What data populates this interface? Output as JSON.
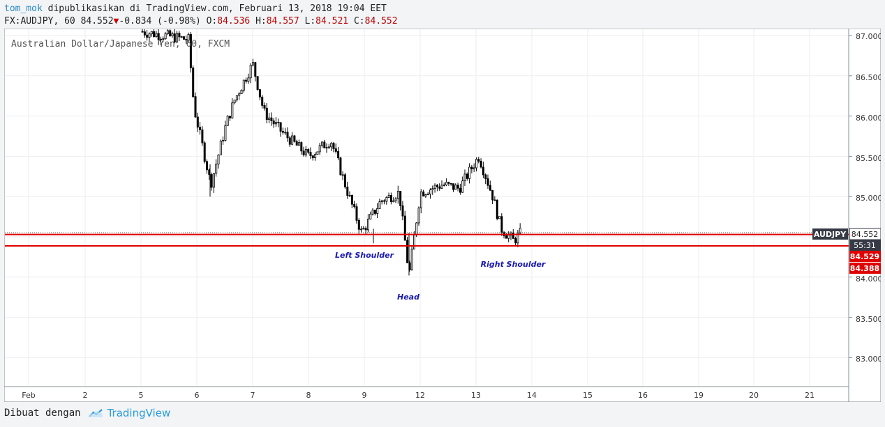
{
  "header": {
    "author": "tom_mok",
    "published_text": "dipublikasikan di TradingView.com, Februari 13, 2018 19:04 EET",
    "symbol": "FX:AUDJPY, 60",
    "last": "84.552",
    "down_arrow": "▼",
    "change": "-0.834 (-0.98%)",
    "o_label": "O:",
    "o_value": "84.536",
    "h_label": "H:",
    "h_value": "84.557",
    "l_label": "L:",
    "l_value": "84.521",
    "c_label": "C:",
    "c_value": "84.552"
  },
  "chart": {
    "watermark": "Australian Dollar/Japanese Yen, 60, FXCM",
    "price_labels": [
      "87.000",
      "86.500",
      "86.000",
      "85.500",
      "85.000",
      "84.000",
      "83.500",
      "83.000"
    ],
    "x_labels": [
      "Feb",
      "2",
      "5",
      "6",
      "7",
      "8",
      "9",
      "12",
      "13",
      "14",
      "15",
      "16",
      "19",
      "20",
      "21"
    ],
    "badges": {
      "symbol": "AUDJPY",
      "price": "84.552",
      "countdown": "55:31",
      "line1": "84.529",
      "line2": "84.388"
    },
    "annotations": {
      "left_shoulder": "Left Shoulder",
      "head": "Head",
      "right_shoulder": "Right Shoulder"
    },
    "colors": {
      "candle": "#000000",
      "support_line": "#e00000",
      "badge_dark": "#363a45",
      "badge_red": "#e00000",
      "annotation": "#1a1ab0"
    }
  },
  "chart_data": {
    "type": "line",
    "title": "Australian Dollar/Japanese Yen, 60, FXCM",
    "x": [
      "Feb 5",
      "Feb 6",
      "Feb 6",
      "Feb 7",
      "Feb 7",
      "Feb 8",
      "Feb 8",
      "Feb 9",
      "Feb 9",
      "Feb 12",
      "Feb 12",
      "Feb 13",
      "Feb 13"
    ],
    "series": [
      {
        "values": [
          87.05,
          86.1,
          85.15,
          86.2,
          86.65,
          85.9,
          85.7,
          85.0,
          84.55,
          84.02,
          85.15,
          85.55,
          84.55
        ]
      }
    ],
    "yticks": [
      83.0,
      83.5,
      84.0,
      84.5,
      85.0,
      85.5,
      86.0,
      86.5,
      87.0
    ],
    "ylim": [
      82.65,
      87.05
    ],
    "horizontal_lines": [
      84.529,
      84.388,
      84.552
    ],
    "grid": true
  },
  "footer": {
    "made_with": "Dibuat dengan",
    "brand": "TradingView"
  }
}
